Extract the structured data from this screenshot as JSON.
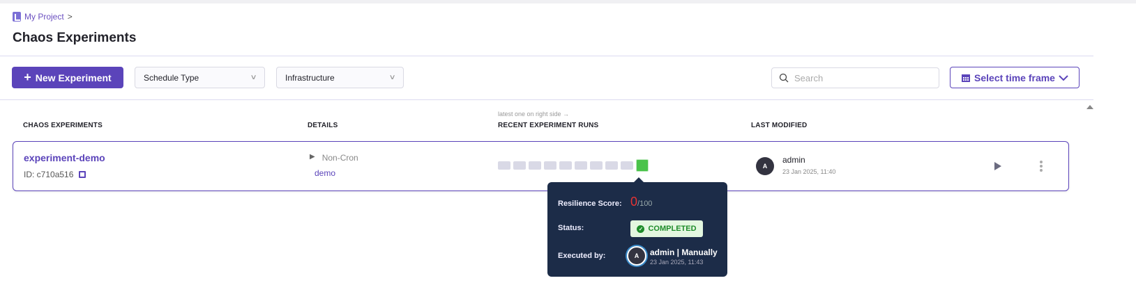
{
  "breadcrumb": {
    "project": "My Project",
    "separator": ">"
  },
  "page_title": "Chaos Experiments",
  "toolbar": {
    "new_experiment": "New Experiment",
    "schedule_type": "Schedule Type",
    "infrastructure": "Infrastructure",
    "search_placeholder": "Search",
    "time_frame": "Select time frame"
  },
  "table": {
    "headers": {
      "experiments": "CHAOS EXPERIMENTS",
      "details": "DETAILS",
      "runs": "RECENT EXPERIMENT RUNS",
      "runs_hint": "latest one on right side →",
      "last_modified": "LAST MODIFIED"
    },
    "rows": [
      {
        "name": "experiment-demo",
        "id": "ID: c710a516",
        "schedule": "Non-Cron",
        "infrastructure": "demo",
        "runs": [
          "none",
          "none",
          "none",
          "none",
          "none",
          "none",
          "none",
          "none",
          "none",
          "completed"
        ],
        "modified_by": "admin",
        "modified_by_initial": "A",
        "modified_at": "23 Jan 2025, 11:40"
      }
    ]
  },
  "tooltip": {
    "score_label": "Resilience Score:",
    "score": "0",
    "score_max": "/100",
    "status_label": "Status:",
    "status": "COMPLETED",
    "executed_label": "Executed by:",
    "executor_initial": "A",
    "executor": "admin | Manually",
    "executed_at": "23 Jan 2025, 11:43"
  },
  "colors": {
    "accent": "#5b44ba",
    "success": "#4ac34a",
    "tooltip_bg": "#1c2c48",
    "score": "#e63333"
  }
}
